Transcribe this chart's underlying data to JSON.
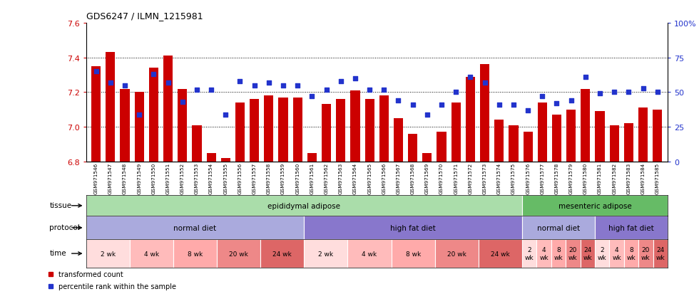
{
  "title": "GDS6247 / ILMN_1215981",
  "samples": [
    "GSM971546",
    "GSM971547",
    "GSM971548",
    "GSM971549",
    "GSM971550",
    "GSM971551",
    "GSM971552",
    "GSM971553",
    "GSM971554",
    "GSM971555",
    "GSM971556",
    "GSM971557",
    "GSM971558",
    "GSM971559",
    "GSM971560",
    "GSM971561",
    "GSM971562",
    "GSM971563",
    "GSM971564",
    "GSM971565",
    "GSM971566",
    "GSM971567",
    "GSM971568",
    "GSM971569",
    "GSM971570",
    "GSM971571",
    "GSM971572",
    "GSM971573",
    "GSM971574",
    "GSM971575",
    "GSM971576",
    "GSM971577",
    "GSM971578",
    "GSM971579",
    "GSM971580",
    "GSM971581",
    "GSM971582",
    "GSM971583",
    "GSM971584",
    "GSM971585"
  ],
  "bar_values": [
    7.35,
    7.43,
    7.22,
    7.2,
    7.34,
    7.41,
    7.22,
    7.01,
    6.85,
    6.82,
    7.14,
    7.16,
    7.18,
    7.17,
    7.17,
    6.85,
    7.13,
    7.16,
    7.21,
    7.16,
    7.18,
    7.05,
    6.96,
    6.85,
    6.97,
    7.14,
    7.29,
    7.36,
    7.04,
    7.01,
    6.97,
    7.14,
    7.07,
    7.1,
    7.22,
    7.09,
    7.01,
    7.02,
    7.11,
    7.1
  ],
  "dot_values": [
    65,
    57,
    55,
    34,
    63,
    57,
    43,
    52,
    52,
    34,
    58,
    55,
    57,
    55,
    55,
    47,
    52,
    58,
    60,
    52,
    52,
    44,
    41,
    34,
    41,
    50,
    61,
    57,
    41,
    41,
    37,
    47,
    42,
    44,
    61,
    49,
    50,
    50,
    53,
    50
  ],
  "ylim_left": [
    6.8,
    7.6
  ],
  "ylim_right": [
    0,
    100
  ],
  "yticks_left": [
    6.8,
    7.0,
    7.2,
    7.4,
    7.6
  ],
  "yticks_right": [
    0,
    25,
    50,
    75,
    100
  ],
  "ytick_labels_right": [
    "0",
    "25",
    "50",
    "75",
    "100%"
  ],
  "bar_color": "#CC0000",
  "dot_color": "#2233CC",
  "bg_color": "#ffffff",
  "tissue_groups": [
    {
      "label": "epididymal adipose",
      "start": 0,
      "end": 29,
      "color": "#aaddaa"
    },
    {
      "label": "mesenteric adipose",
      "start": 30,
      "end": 39,
      "color": "#66bb66"
    }
  ],
  "protocol_groups": [
    {
      "label": "normal diet",
      "start": 0,
      "end": 14,
      "color": "#aaaadd"
    },
    {
      "label": "high fat diet",
      "start": 15,
      "end": 29,
      "color": "#8877cc"
    },
    {
      "label": "normal diet",
      "start": 30,
      "end": 34,
      "color": "#aaaadd"
    },
    {
      "label": "high fat diet",
      "start": 35,
      "end": 39,
      "color": "#8877cc"
    }
  ],
  "time_groups": [
    {
      "label": "2 wk",
      "start": 0,
      "end": 2,
      "color": "#ffdddd"
    },
    {
      "label": "4 wk",
      "start": 3,
      "end": 5,
      "color": "#ffbbbb"
    },
    {
      "label": "8 wk",
      "start": 6,
      "end": 8,
      "color": "#ffaaaa"
    },
    {
      "label": "20 wk",
      "start": 9,
      "end": 11,
      "color": "#ee8888"
    },
    {
      "label": "24 wk",
      "start": 12,
      "end": 14,
      "color": "#dd6666"
    },
    {
      "label": "2 wk",
      "start": 15,
      "end": 17,
      "color": "#ffdddd"
    },
    {
      "label": "4 wk",
      "start": 18,
      "end": 20,
      "color": "#ffbbbb"
    },
    {
      "label": "8 wk",
      "start": 21,
      "end": 23,
      "color": "#ffaaaa"
    },
    {
      "label": "20 wk",
      "start": 24,
      "end": 26,
      "color": "#ee8888"
    },
    {
      "label": "24 wk",
      "start": 27,
      "end": 29,
      "color": "#dd6666"
    },
    {
      "label": "2\nwk",
      "start": 30,
      "end": 30,
      "color": "#ffdddd"
    },
    {
      "label": "4\nwk",
      "start": 31,
      "end": 31,
      "color": "#ffbbbb"
    },
    {
      "label": "8\nwk",
      "start": 32,
      "end": 32,
      "color": "#ffaaaa"
    },
    {
      "label": "20\nwk",
      "start": 33,
      "end": 33,
      "color": "#ee8888"
    },
    {
      "label": "24\nwk",
      "start": 34,
      "end": 34,
      "color": "#dd6666"
    },
    {
      "label": "2\nwk",
      "start": 35,
      "end": 35,
      "color": "#ffdddd"
    },
    {
      "label": "4\nwk",
      "start": 36,
      "end": 36,
      "color": "#ffbbbb"
    },
    {
      "label": "8\nwk",
      "start": 37,
      "end": 37,
      "color": "#ffaaaa"
    },
    {
      "label": "20\nwk",
      "start": 38,
      "end": 38,
      "color": "#ee8888"
    },
    {
      "label": "24\nwk",
      "start": 39,
      "end": 39,
      "color": "#dd6666"
    }
  ],
  "legend_items": [
    {
      "label": "transformed count",
      "color": "#CC0000"
    },
    {
      "label": "percentile rank within the sample",
      "color": "#2233CC"
    }
  ]
}
